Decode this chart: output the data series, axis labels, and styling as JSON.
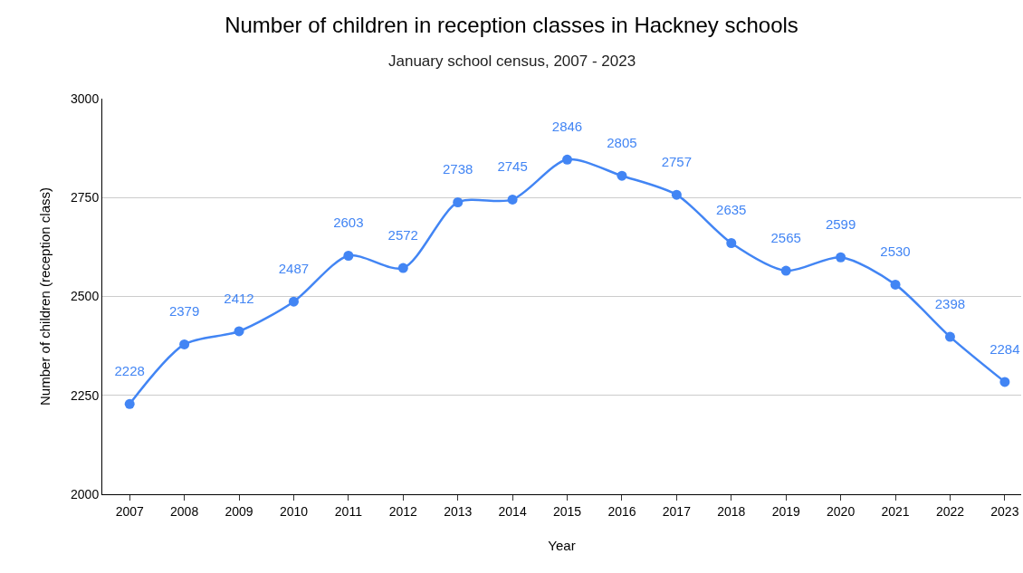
{
  "chart_data": {
    "type": "line",
    "title": "Number of children in reception classes in Hackney schools",
    "subtitle": "January school census, 2007 - 2023",
    "xlabel": "Year",
    "ylabel": "Number of children (reception class)",
    "categories": [
      "2007",
      "2008",
      "2009",
      "2010",
      "2011",
      "2012",
      "2013",
      "2014",
      "2015",
      "2016",
      "2017",
      "2018",
      "2019",
      "2020",
      "2021",
      "2022",
      "2023"
    ],
    "series": [
      {
        "color": "#4285f4",
        "values": [
          2228,
          2379,
          2412,
          2487,
          2603,
          2572,
          2738,
          2745,
          2846,
          2805,
          2757,
          2635,
          2565,
          2599,
          2530,
          2398,
          2284
        ]
      }
    ],
    "ylim": [
      2000,
      3000
    ],
    "yticks": [
      2000,
      2250,
      2500,
      2750,
      3000
    ],
    "grid": "y",
    "marker": "circle",
    "line_style": "solid",
    "data_labels": true,
    "legend": false
  }
}
